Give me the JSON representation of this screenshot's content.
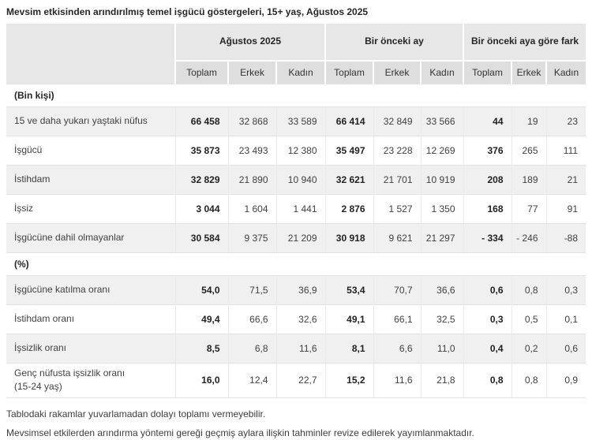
{
  "title": "Mevsim etkisinden arındırılmış temel işgücü göstergeleri, 15+ yaş, Ağustos 2025",
  "chart_data": {
    "type": "table",
    "title": "Mevsim etkisinden arındırılmış temel işgücü göstergeleri, 15+ yaş, Ağustos 2025",
    "column_groups": [
      "Ağustos 2025",
      "Bir önceki ay",
      "Bir önceki aya göre fark"
    ],
    "sub_columns": [
      "Toplam",
      "Erkek",
      "Kadın"
    ],
    "sections": [
      {
        "header": "(Bin kişi)",
        "rows": [
          {
            "label": "15 ve daha yukarı yaştaki nüfus",
            "values": [
              "66 458",
              "32 868",
              "33 589",
              "66 414",
              "32 849",
              "33 566",
              "44",
              "19",
              "23"
            ]
          },
          {
            "label": "İşgücü",
            "values": [
              "35 873",
              "23 493",
              "12 380",
              "35 497",
              "23 228",
              "12 269",
              "376",
              "265",
              "111"
            ]
          },
          {
            "label": "İstihdam",
            "values": [
              "32 829",
              "21 890",
              "10 940",
              "32 621",
              "21 701",
              "10 919",
              "208",
              "189",
              "21"
            ]
          },
          {
            "label": "İşsiz",
            "values": [
              "3 044",
              "1 604",
              "1 441",
              "2 876",
              "1 527",
              "1 350",
              "168",
              "77",
              "91"
            ]
          },
          {
            "label": "İşgücüne dahil olmayanlar",
            "values": [
              "30 584",
              "9 375",
              "21 209",
              "30 918",
              "9 621",
              "21 297",
              "- 334",
              "- 246",
              "-88"
            ]
          }
        ]
      },
      {
        "header": "(%)",
        "rows": [
          {
            "label": "İşgücüne katılma oranı",
            "values": [
              "54,0",
              "71,5",
              "36,9",
              "53,4",
              "70,7",
              "36,6",
              "0,6",
              "0,8",
              "0,3"
            ]
          },
          {
            "label": "İstihdam oranı",
            "values": [
              "49,4",
              "66,6",
              "32,6",
              "49,1",
              "66,1",
              "32,5",
              "0,3",
              "0,5",
              "0,1"
            ]
          },
          {
            "label": "İşsizlik oranı",
            "values": [
              "8,5",
              "6,8",
              "11,6",
              "8,1",
              "6,6",
              "11,0",
              "0,4",
              "0,2",
              "0,6"
            ]
          },
          {
            "label": "Genç nüfusta işsizlik oranı",
            "label_line2": "(15-24 yaş)",
            "values": [
              "16,0",
              "12,4",
              "22,7",
              "15,2",
              "11,6",
              "21,8",
              "0,8",
              "0,8",
              "0,9"
            ]
          }
        ]
      }
    ]
  },
  "footnotes": [
    "Tablodaki rakamlar yuvarlamadan dolayı toplamı vermeyebilir.",
    "Mevsimsel etkilerden arındırma yöntemi gereği geçmiş aylara ilişkin tahminler revize edilerek yayımlanmaktadır."
  ],
  "colors": {
    "header_bg": "#e7e7e7",
    "subheader_bg": "#dedede",
    "stripe_bg": "#f0f0f1",
    "row_border": "#e1e1e1",
    "text": "#404040",
    "text_bold": "#222222"
  }
}
